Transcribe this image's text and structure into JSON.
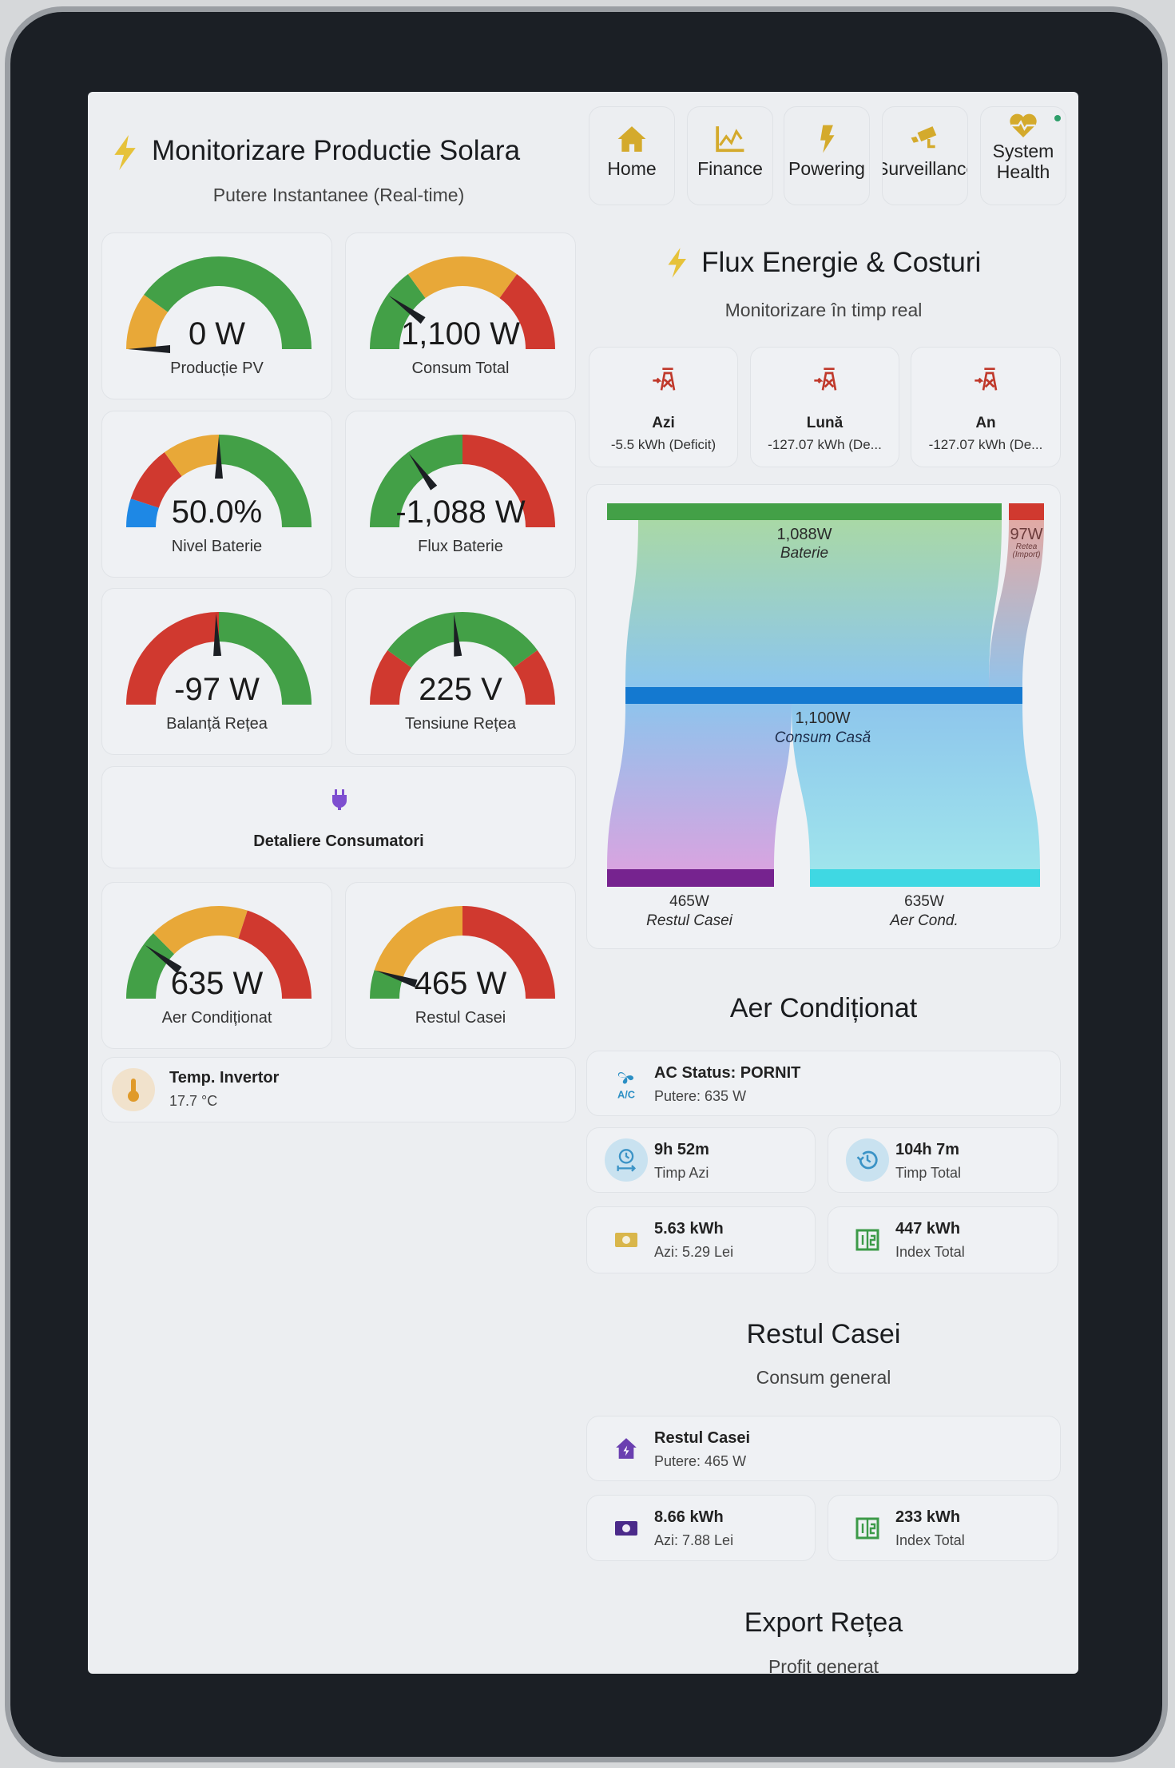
{
  "left": {
    "title": "Monitorizare Productie Solara",
    "subtitle": "Putere Instantanee (Real-time)",
    "gauges": [
      {
        "value": "0 W",
        "label": "Producție PV",
        "needle": 0.0,
        "segments": [
          [
            0,
            0.2,
            "#e8a838"
          ],
          [
            0.2,
            1,
            "#43a047"
          ]
        ]
      },
      {
        "value": "1,100 W",
        "label": "Consum Total",
        "needle": 0.2,
        "segments": [
          [
            0,
            0.3,
            "#43a047"
          ],
          [
            0.3,
            0.7,
            "#e8a838"
          ],
          [
            0.7,
            1,
            "#d0392f"
          ]
        ]
      },
      {
        "value": "50.0%",
        "label": "Nivel Baterie",
        "needle": 0.5,
        "segments": [
          [
            0,
            0.1,
            "#1e88e5"
          ],
          [
            0.1,
            0.3,
            "#d0392f"
          ],
          [
            0.3,
            0.5,
            "#e8a838"
          ],
          [
            0.5,
            1,
            "#43a047"
          ]
        ]
      },
      {
        "value": "-1,088 W",
        "label": "Flux Baterie",
        "needle": 0.3,
        "segments": [
          [
            0,
            0.5,
            "#43a047"
          ],
          [
            0.5,
            1,
            "#d0392f"
          ]
        ]
      },
      {
        "value": "-97 W",
        "label": "Balanță Rețea",
        "needle": 0.49,
        "segments": [
          [
            0,
            0.5,
            "#d0392f"
          ],
          [
            0.5,
            1,
            "#43a047"
          ]
        ]
      },
      {
        "value": "225 V",
        "label": "Tensiune Rețea",
        "needle": 0.47,
        "segments": [
          [
            0,
            0.2,
            "#d0392f"
          ],
          [
            0.2,
            0.8,
            "#43a047"
          ],
          [
            0.8,
            1,
            "#d0392f"
          ]
        ]
      },
      {
        "value": "635 W",
        "label": "Aer Condiționat",
        "needle": 0.2,
        "segments": [
          [
            0,
            0.25,
            "#43a047"
          ],
          [
            0.25,
            0.6,
            "#e8a838"
          ],
          [
            0.6,
            1,
            "#d0392f"
          ]
        ]
      },
      {
        "value": "465 W",
        "label": "Restul Casei",
        "needle": 0.1,
        "segments": [
          [
            0,
            0.1,
            "#43a047"
          ],
          [
            0.1,
            0.5,
            "#e8a838"
          ],
          [
            0.5,
            1,
            "#d0392f"
          ]
        ]
      }
    ],
    "consumers_label": "Detaliere Consumatori",
    "temp": {
      "title": "Temp. Invertor",
      "value": "17.7 °C"
    }
  },
  "nav": [
    {
      "label": "Home",
      "icon": "home-icon"
    },
    {
      "label": "Finance",
      "icon": "chart-line-icon"
    },
    {
      "label": "Powering",
      "icon": "lightning-icon"
    },
    {
      "label": "Surveillance",
      "icon": "cctv-icon"
    },
    {
      "label": "System Health",
      "icon": "heart-pulse-icon"
    }
  ],
  "flux": {
    "title": "Flux Energie & Costuri",
    "subtitle": "Monitorizare în timp real",
    "stats": [
      {
        "title": "Azi",
        "value": "-5.5 kWh (Deficit)"
      },
      {
        "title": "Lună",
        "value": "-127.07 kWh (De..."
      },
      {
        "title": "An",
        "value": "-127.07 kWh (De..."
      }
    ],
    "sankey": {
      "sources": [
        {
          "value": "1,088W",
          "label": "Baterie",
          "color": "#43a047"
        },
        {
          "value": "97W",
          "label": "Retea",
          "label2": "(Import)",
          "color": "#d0392f"
        }
      ],
      "middle": {
        "value": "1,100W",
        "label": "Consum Casă",
        "color": "#1479d0"
      },
      "targets": [
        {
          "value": "465W",
          "label": "Restul Casei",
          "color": "#76238f"
        },
        {
          "value": "635W",
          "label": "Aer Cond.",
          "color": "#3fd8e3"
        }
      ]
    }
  },
  "ac": {
    "title": "Aer Condiționat",
    "status": "AC Status: PORNIT",
    "power": "Putere: 635 W",
    "time_today": "9h 52m",
    "time_today_label": "Timp Azi",
    "time_total": "104h 7m",
    "time_total_label": "Timp Total",
    "energy_today": "5.63 kWh",
    "cost_today": "Azi: 5.29 Lei",
    "index": "447 kWh",
    "index_label": "Index Total"
  },
  "rest": {
    "title": "Restul Casei",
    "subtitle": "Consum general",
    "name": "Restul Casei",
    "power": "Putere: 465 W",
    "energy_today": "8.66 kWh",
    "cost_today": "Azi: 7.88 Lei",
    "index": "233 kWh",
    "index_label": "Index Total"
  },
  "export": {
    "title": "Export Rețea",
    "subtitle": "Profit generat"
  }
}
